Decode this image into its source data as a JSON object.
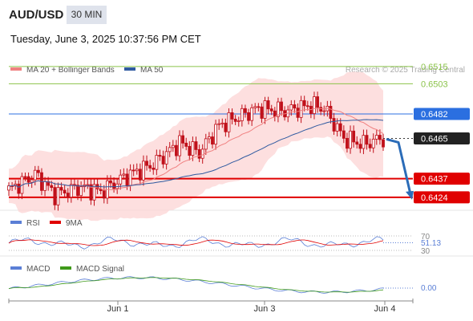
{
  "header": {
    "symbol": "AUD/USD",
    "timeframe": "30 MIN",
    "timestamp": "Tuesday, June 3, 2025 10:37:56 PM CET"
  },
  "colors": {
    "ma20": "#f08080",
    "bollinger_fill": "#fcd4d4",
    "ma50": "#2f5aa0",
    "candle": "#c0101a",
    "resistance_green": "#8bc34a",
    "resistance_blue": "#2b6fe0",
    "support_red": "#e00000",
    "arrow": "#2b6cb8",
    "rsi": "#5b7fd6",
    "rsi_ma": "#e00000",
    "macd": "#5b7fd6",
    "macd_signal": "#3f9a1a"
  },
  "chart_data": [
    {
      "type": "candlestick",
      "title": "AUD/USD",
      "legend": [
        "MA 20 + Bollinger Bands",
        "MA 50"
      ],
      "watermark": "Research © 2025 Trading Central",
      "x_ticks": [
        "Jun 1",
        "Jun 3",
        "Jun 4"
      ],
      "ylim": [
        0.6415,
        0.6525
      ],
      "levels": [
        {
          "value": 0.6515,
          "label": "0.6515",
          "kind": "resistance"
        },
        {
          "value": 0.6503,
          "label": "0.6503",
          "kind": "resistance"
        },
        {
          "value": 0.6482,
          "label": "0.6482",
          "kind": "pivot"
        },
        {
          "value": 0.6465,
          "label": "0.6465",
          "kind": "last"
        },
        {
          "value": 0.6437,
          "label": "0.6437",
          "kind": "support"
        },
        {
          "value": 0.6424,
          "label": "0.6424",
          "kind": "support"
        }
      ],
      "projection": {
        "from": 0.6465,
        "to": 0.6424
      }
    },
    {
      "type": "line",
      "title": "RSI",
      "series": [
        {
          "name": "RSI"
        },
        {
          "name": "9MA"
        }
      ],
      "ylim": [
        30,
        70
      ],
      "y_ticks": [
        "70",
        "30"
      ],
      "last_value": "51.13"
    },
    {
      "type": "line",
      "title": "MACD",
      "series": [
        {
          "name": "MACD"
        },
        {
          "name": "MACD Signal"
        }
      ],
      "last_value": "0.00"
    }
  ]
}
